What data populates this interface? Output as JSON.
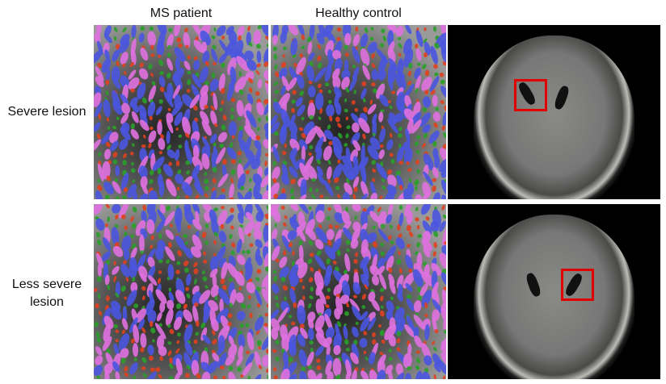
{
  "columns": [
    "MS patient",
    "Healthy control"
  ],
  "rows": [
    "Severe lesion",
    "Less severe lesion"
  ],
  "colors": {
    "highlight_box": "#e00000",
    "glyph_blue": "#4a55e0",
    "glyph_pink": "#e070e0",
    "glyph_green": "#2aa02a",
    "glyph_red": "#e04020"
  }
}
